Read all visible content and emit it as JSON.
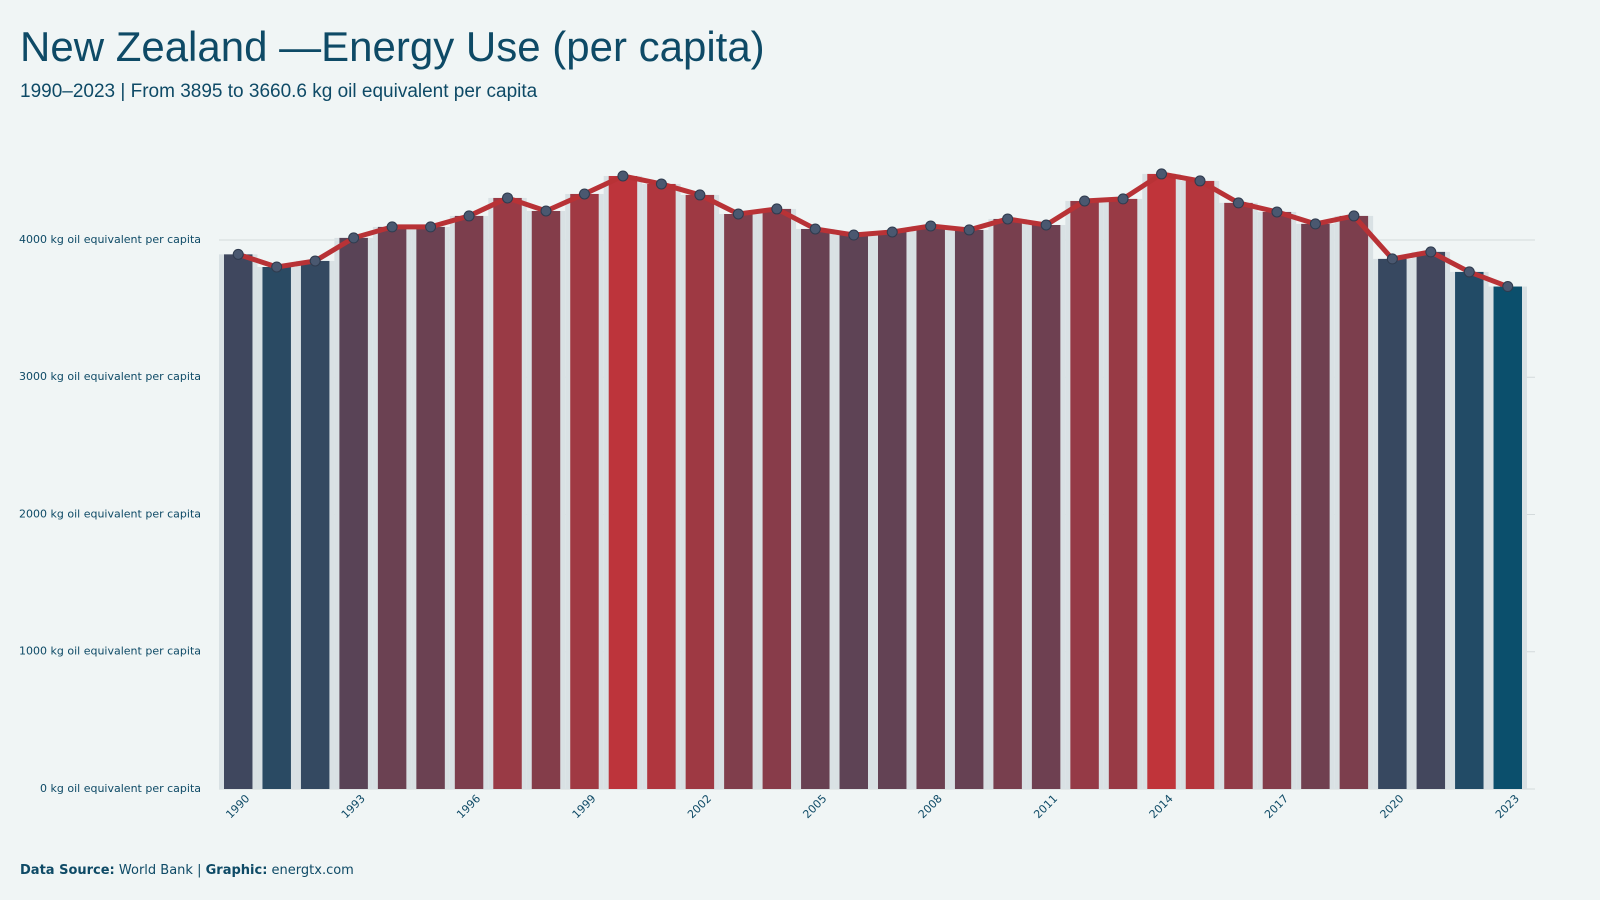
{
  "chart_data": {
    "type": "bar",
    "title": "New Zealand —Energy Use (per capita)",
    "subtitle": "1990–2023 | From 3895 to 3660.6 kg oil equivalent per capita",
    "categories": [
      "1990",
      null,
      null,
      "1993",
      null,
      null,
      "1996",
      null,
      null,
      "1999",
      null,
      null,
      "2002",
      null,
      null,
      "2005",
      null,
      null,
      "2008",
      null,
      null,
      "2011",
      null,
      null,
      "2014",
      null,
      null,
      "2017",
      null,
      null,
      "2020",
      null,
      null,
      "2023"
    ],
    "values": [
      3895,
      3803,
      3847,
      4015,
      4095,
      4095,
      4175,
      4306,
      4211,
      4335,
      4466,
      4408,
      4328,
      4189,
      4226,
      4080,
      4036,
      4058,
      4102,
      4073,
      4153,
      4109,
      4284,
      4299,
      4481,
      4430,
      4270,
      4204,
      4117,
      4175,
      3862,
      3913,
      3767,
      3660.6
    ],
    "color_low": "#0b4f6c",
    "color_high": "#c0343a",
    "line_color": "#b83236",
    "marker_color": "#4a5870",
    "ylim": [
      0,
      4750
    ],
    "yticks": [
      {
        "value": 0,
        "label": "0 kg oil equivalent per capita"
      },
      {
        "value": 1000,
        "label": "1000 kg oil equivalent per capita"
      },
      {
        "value": 2000,
        "label": "2000 kg oil equivalent per capita"
      },
      {
        "value": 3000,
        "label": "3000 kg oil equivalent per capita"
      },
      {
        "value": 4000,
        "label": "4000 kg oil equivalent per capita"
      }
    ],
    "grid": true,
    "footer": {
      "source_label": "Data Source:",
      "source": "World Bank",
      "separator": "|",
      "graphic_label": "Graphic:",
      "graphic": "energtx.com"
    }
  }
}
